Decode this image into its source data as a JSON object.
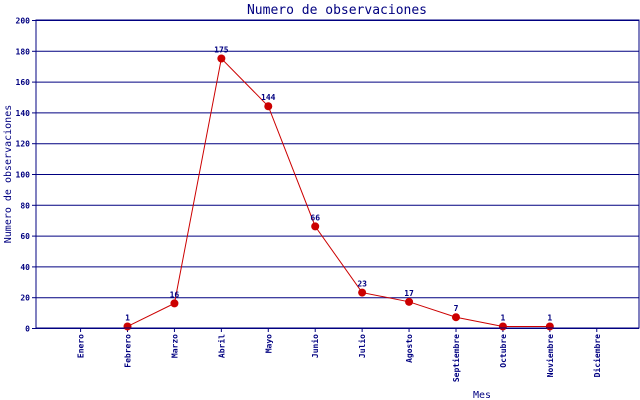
{
  "chart_data": {
    "type": "line",
    "title": "Numero de observaciones",
    "xlabel": "Mes",
    "ylabel": "Numero de observaciones",
    "categories": [
      "Enero",
      "Febrero",
      "Marzo",
      "Abril",
      "Mayo",
      "Junio",
      "Julio",
      "Agosto",
      "Septiembre",
      "Octubre",
      "Noviembre",
      "Diciembre"
    ],
    "series": [
      {
        "values": [
          null,
          1,
          16,
          175,
          144,
          66,
          23,
          17,
          7,
          1,
          1,
          null
        ]
      }
    ],
    "data_labels": [
      "",
      "1",
      "16",
      "175",
      "144",
      "66",
      "23",
      "17",
      "7",
      "1",
      "1",
      ""
    ],
    "ylim": [
      0,
      200
    ],
    "yticks": [
      0,
      20,
      40,
      60,
      80,
      100,
      120,
      140,
      160,
      180,
      200
    ],
    "grid": true,
    "colors": {
      "line": "#cc0000",
      "marker": "#cc0000",
      "grid": "#000080",
      "text": "#000080"
    }
  }
}
